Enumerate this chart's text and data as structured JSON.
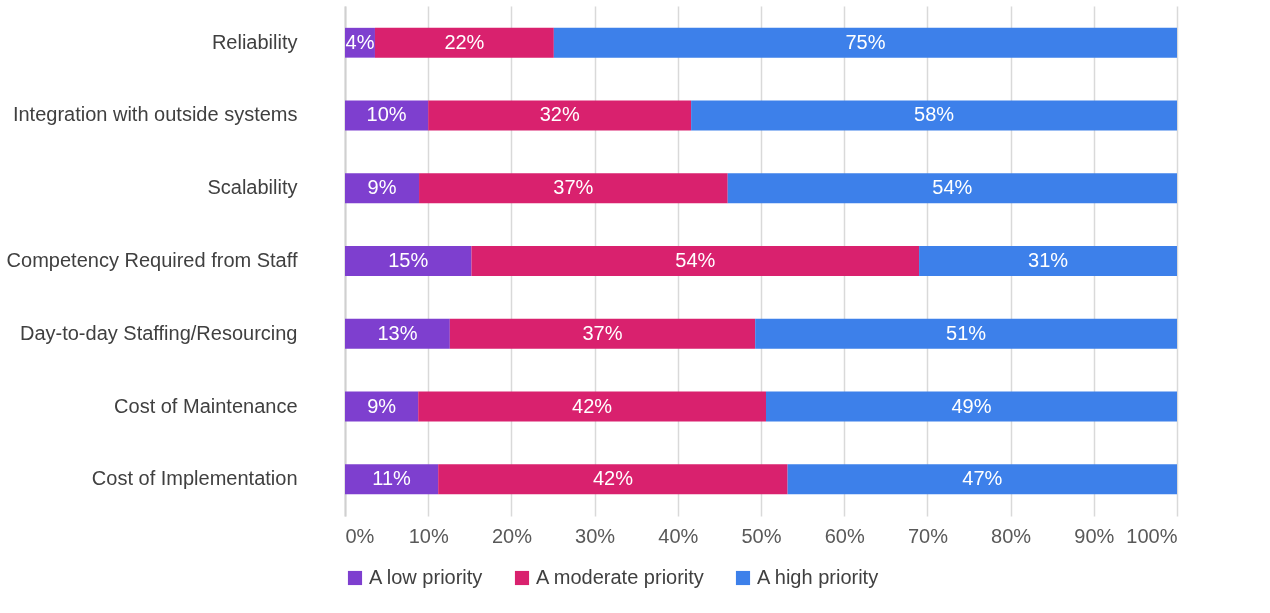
{
  "chart_data": {
    "type": "bar",
    "orientation": "horizontal",
    "stacked": true,
    "categories": [
      "Reliability",
      "Integration with outside systems",
      "Scalability",
      "Competency Required from Staff",
      "Day-to-day Staffing/Resourcing",
      "Cost of Maintenance",
      "Cost of Implementation"
    ],
    "series": [
      {
        "name": "A low priority",
        "color": "#7e3fcf",
        "values": [
          3.6,
          10.0,
          8.9,
          15.2,
          12.6,
          8.8,
          11.2
        ],
        "value_labels": [
          "4%",
          "10%",
          "9%",
          "15%",
          "13%",
          "9%",
          "11%"
        ]
      },
      {
        "name": "A moderate priority",
        "color": "#d9216e",
        "values": [
          21.5,
          31.6,
          37.1,
          53.8,
          36.7,
          41.8,
          42.0
        ],
        "value_labels": [
          "22%",
          "32%",
          "37%",
          "54%",
          "37%",
          "42%",
          "42%"
        ]
      },
      {
        "name": "A high priority",
        "color": "#3d80ea",
        "values": [
          74.9,
          58.4,
          54.0,
          31.0,
          50.7,
          49.4,
          46.8
        ],
        "value_labels": [
          "75%",
          "58%",
          "54%",
          "31%",
          "51%",
          "49%",
          "47%"
        ]
      }
    ],
    "xlim": [
      0,
      100
    ],
    "xticks": [
      {
        "value": 0,
        "label": "0%"
      },
      {
        "value": 10,
        "label": "10%"
      },
      {
        "value": 20,
        "label": "20%"
      },
      {
        "value": 30,
        "label": "30%"
      },
      {
        "value": 40,
        "label": "40%"
      },
      {
        "value": 50,
        "label": "50%"
      },
      {
        "value": 60,
        "label": "60%"
      },
      {
        "value": 70,
        "label": "70%"
      },
      {
        "value": 80,
        "label": "80%"
      },
      {
        "value": 90,
        "label": "90%"
      },
      {
        "value": 100,
        "label": "100%"
      }
    ],
    "grid": "x",
    "legend": "bottom"
  }
}
